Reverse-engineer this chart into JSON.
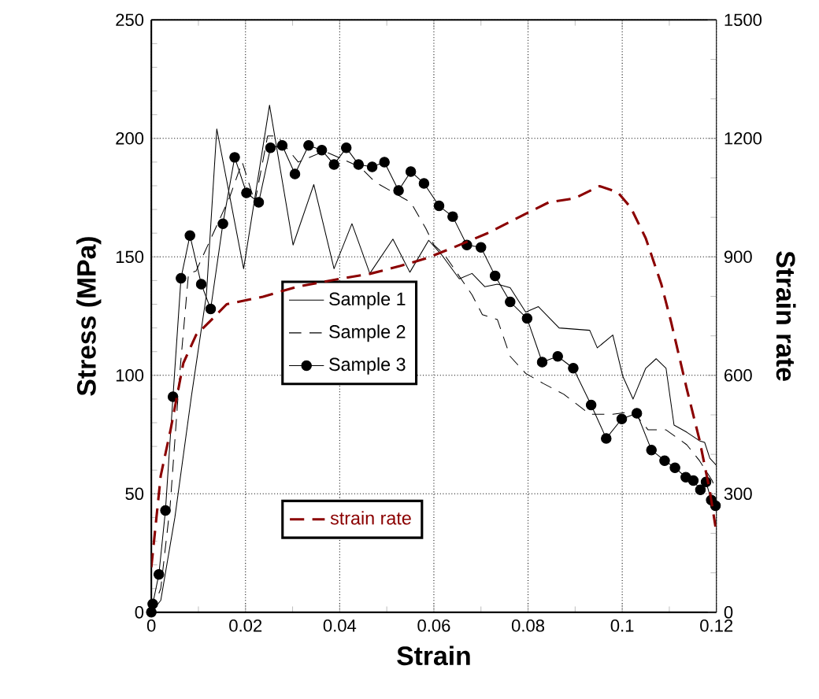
{
  "chart_data": {
    "type": "line",
    "xlabel": "Strain",
    "ylabel": "Stress (MPa)",
    "y2label": "Strain rate",
    "xlim": [
      0,
      0.12
    ],
    "xticks": [
      0,
      0.02,
      0.04,
      0.06,
      0.08,
      0.1,
      0.12
    ],
    "ylim": [
      0,
      250
    ],
    "yticks": [
      0,
      50,
      100,
      150,
      200,
      250
    ],
    "y2lim": [
      0,
      1500
    ],
    "y2ticks": [
      0,
      300,
      600,
      900,
      1200,
      1500
    ],
    "grid": true,
    "legend": "left",
    "series": [
      {
        "name": "Sample 1",
        "color": "#000000",
        "line_style": "solid",
        "marker": "none",
        "x": [
          0,
          0.002,
          0.005,
          0.0085,
          0.0117,
          0.0139,
          0.0196,
          0.0251,
          0.0301,
          0.0345,
          0.0388,
          0.0426,
          0.0464,
          0.0513,
          0.0549,
          0.0589,
          0.0616,
          0.0654,
          0.0681,
          0.0708,
          0.0735,
          0.0762,
          0.0795,
          0.0822,
          0.0866,
          0.0931,
          0.0947,
          0.098,
          0.1001,
          0.1023,
          0.105,
          0.1072,
          0.1093,
          0.111,
          0.1137,
          0.1164,
          0.1175,
          0.1186,
          0.12
        ],
        "values": [
          0,
          5,
          40,
          91,
          134,
          204,
          145,
          214,
          155,
          180.5,
          145,
          164,
          143,
          157.5,
          143.5,
          157,
          151,
          140.7,
          143,
          137.4,
          138.5,
          137,
          126.7,
          129,
          120,
          119,
          111.6,
          117,
          99.7,
          90,
          103,
          107,
          103,
          79,
          76,
          72.4,
          71.7,
          65,
          62
        ]
      },
      {
        "name": "Sample 2",
        "color": "#000000",
        "line_style": "dashed",
        "marker": "none",
        "x": [
          0,
          0.002,
          0.004,
          0.006,
          0.0079,
          0.0095,
          0.0166,
          0.0193,
          0.022,
          0.0247,
          0.0267,
          0.0312,
          0.0367,
          0.0443,
          0.0475,
          0.0551,
          0.0583,
          0.06,
          0.0622,
          0.0643,
          0.0681,
          0.0703,
          0.0735,
          0.0762,
          0.0795,
          0.0833,
          0.0876,
          0.0931,
          0.098,
          0.1023,
          0.1055,
          0.1093,
          0.1137,
          0.1164,
          0.1191,
          0.12
        ],
        "values": [
          0,
          10,
          45,
          100,
          143,
          144,
          175,
          190,
          173,
          201,
          201,
          190,
          194.6,
          188,
          181.6,
          173,
          162,
          155,
          151,
          145,
          134,
          125.6,
          123.5,
          108,
          100.8,
          96.5,
          92,
          83.6,
          83.6,
          84.7,
          77,
          77,
          70.7,
          64,
          55.6,
          51
        ]
      },
      {
        "name": "Sample 3",
        "color": "#000000",
        "line_style": "solid",
        "marker": "circle",
        "x": [
          0,
          0.0003,
          0.0016,
          0.003,
          0.0046,
          0.0063,
          0.0082,
          0.0106,
          0.0126,
          0.0152,
          0.0177,
          0.0202,
          0.0228,
          0.0253,
          0.0278,
          0.0305,
          0.0334,
          0.0362,
          0.0388,
          0.0414,
          0.044,
          0.0469,
          0.0495,
          0.0525,
          0.0551,
          0.0579,
          0.0611,
          0.064,
          0.067,
          0.07,
          0.073,
          0.0762,
          0.0798,
          0.083,
          0.0863,
          0.0896,
          0.0934,
          0.0966,
          0.0999,
          0.1031,
          0.1062,
          0.109,
          0.1112,
          0.1135,
          0.1151,
          0.1166,
          0.1178,
          0.1189,
          0.1198
        ],
        "values": [
          0,
          3.5,
          16,
          43,
          91,
          141,
          159,
          138.5,
          128,
          164,
          192,
          177,
          173,
          196,
          197,
          185,
          197,
          195,
          189,
          196,
          189,
          188,
          190,
          178,
          186,
          181,
          171.5,
          167,
          155,
          154,
          142,
          131,
          124,
          105.6,
          108,
          103,
          87.5,
          73.4,
          81.6,
          84,
          68.5,
          64,
          61,
          57,
          55.6,
          51.7,
          55,
          47.4,
          45
        ]
      },
      {
        "name": "strain rate",
        "color": "#8b0000",
        "line_style": "dashed",
        "marker": "none",
        "axis": "y2",
        "x": [
          0,
          0.002,
          0.0041,
          0.0068,
          0.0095,
          0.0128,
          0.016,
          0.0237,
          0.0312,
          0.0399,
          0.0464,
          0.0529,
          0.0583,
          0.0638,
          0.0714,
          0.079,
          0.0844,
          0.0898,
          0.0952,
          0.099,
          0.1018,
          0.105,
          0.1083,
          0.1104,
          0.1137,
          0.1164,
          0.1186,
          0.1198
        ],
        "values": [
          114,
          346,
          463,
          631,
          702,
          741,
          780,
          799,
          825,
          844,
          857,
          877,
          896,
          922,
          960,
          1006,
          1038,
          1048,
          1079,
          1064,
          1025,
          947,
          831,
          734,
          566,
          437,
          307,
          217
        ]
      }
    ]
  }
}
